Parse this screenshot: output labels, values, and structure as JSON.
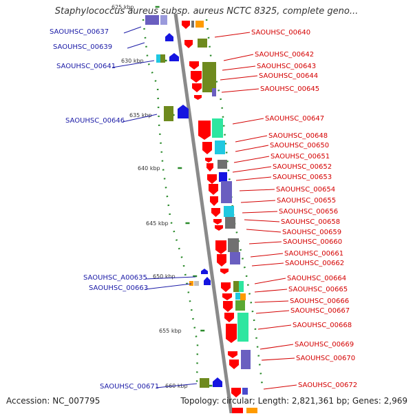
{
  "title": "Staphylococcus aureus subsp. aureus NCTC 8325, complete geno...",
  "footer": {
    "accession": "Accession: NC_007795",
    "topology": "Topology: circular; Length: 2,821,361 bp; Genes: 2,969"
  },
  "colors": {
    "minus_label": "#1a1aa6",
    "plus_label": "#d40000",
    "strand_red": "#ff0000",
    "strand_blue": "#1515e0",
    "cog_olive": "#6e8a1e",
    "cog_cyan": "#20c8e0",
    "cog_mint": "#2ee6a0",
    "cog_indigo": "#6a5fc0",
    "cog_gray": "#707070",
    "cog_orange": "#ff9b00",
    "dots": "#2a8a2a"
  },
  "ticks": [
    "625 kbp",
    "630 kbp",
    "635 kbp",
    "640 kbp",
    "645 kbp",
    "650 kbp",
    "655 kbp",
    "660 kbp"
  ],
  "minus_genes": [
    "SAOUHSC_00637",
    "SAOUHSC_00639",
    "SAOUHSC_00641",
    "SAOUHSC_00646",
    "SAOUHSC_A00635",
    "SAOUHSC_00663",
    "SAOUHSC_00671"
  ],
  "plus_genes": [
    "SAOUHSC_00640",
    "SAOUHSC_00642",
    "SAOUHSC_00643",
    "SAOUHSC_00644",
    "SAOUHSC_00645",
    "SAOUHSC_00647",
    "SAOUHSC_00648",
    "SAOUHSC_00650",
    "SAOUHSC_00651",
    "SAOUHSC_00652",
    "SAOUHSC_00653",
    "SAOUHSC_00654",
    "SAOUHSC_00655",
    "SAOUHSC_00656",
    "SAOUHSC_00658",
    "SAOUHSC_00659",
    "SAOUHSC_00660",
    "SAOUHSC_00661",
    "SAOUHSC_00662",
    "SAOUHSC_00664",
    "SAOUHSC_00665",
    "SAOUHSC_00666",
    "SAOUHSC_00667",
    "SAOUHSC_00668",
    "SAOUHSC_00669",
    "SAOUHSC_00670",
    "SAOUHSC_00672"
  ]
}
